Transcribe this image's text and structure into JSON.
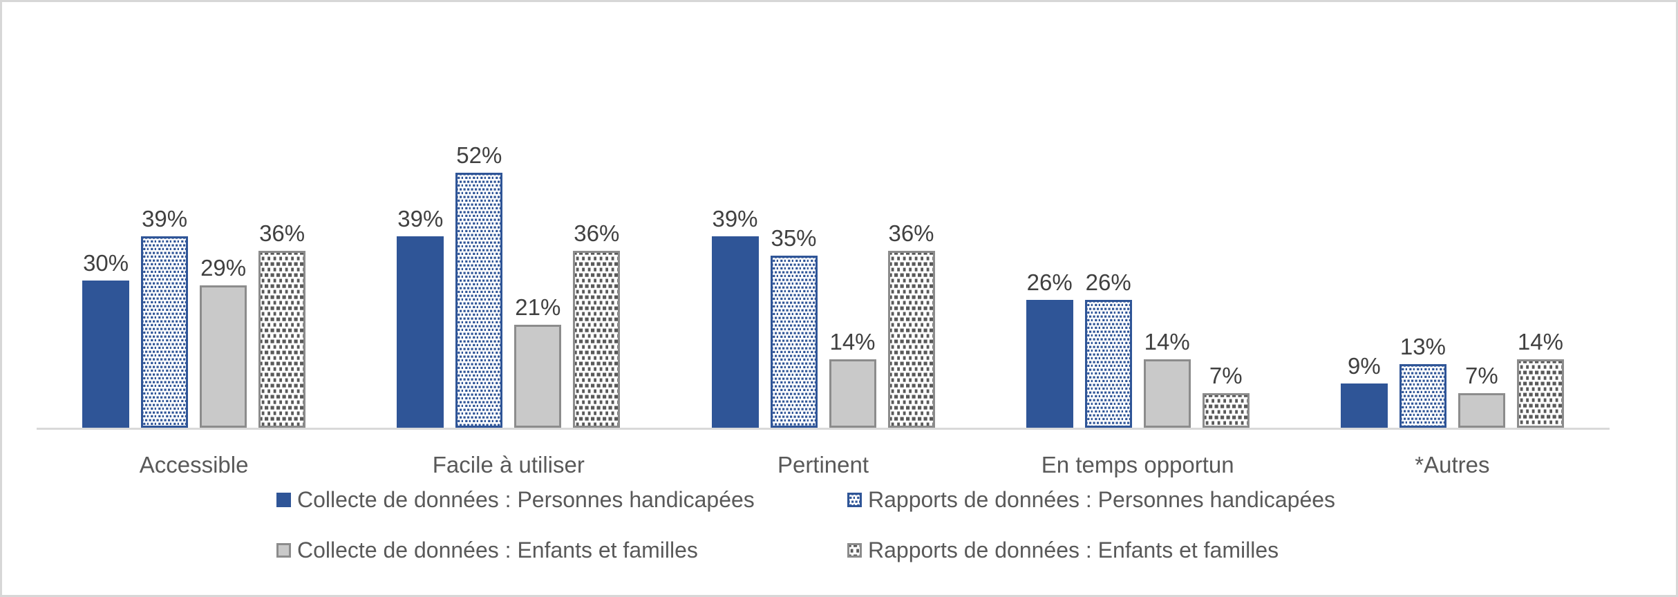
{
  "chart_data": {
    "type": "bar",
    "title": "",
    "xlabel": "",
    "ylabel": "",
    "value_suffix": "%",
    "ylim": [
      0,
      60
    ],
    "grid": false,
    "legend_position": "bottom",
    "categories": [
      "Accessible",
      "Facile à utiliser",
      "Pertinent",
      "En temps opportun",
      "*Autres"
    ],
    "series": [
      {
        "name": "Collecte de données : Personnes handicapées",
        "style": "solid-blue",
        "values": [
          30,
          39,
          39,
          26,
          9
        ]
      },
      {
        "name": "Rapports de données : Personnes handicapées",
        "style": "dotted-blue",
        "values": [
          39,
          52,
          35,
          26,
          13
        ]
      },
      {
        "name": "Collecte de données : Enfants et familles",
        "style": "solid-gray",
        "values": [
          29,
          21,
          14,
          14,
          7
        ]
      },
      {
        "name": "Rapports de données : Enfants et familles",
        "style": "checker-gray",
        "values": [
          36,
          36,
          36,
          7,
          14
        ]
      }
    ],
    "value_labels": [
      [
        "30%",
        "39%",
        "29%",
        "36%"
      ],
      [
        "39%",
        "52%",
        "21%",
        "36%"
      ],
      [
        "39%",
        "35%",
        "14%",
        "36%"
      ],
      [
        "26%",
        "26%",
        "14%",
        "7%"
      ],
      [
        "9%",
        "13%",
        "7%",
        "14%"
      ]
    ]
  },
  "colors": {
    "series_blue": "#2F5597",
    "series_gray_fill": "#C9C9C9",
    "series_gray_border": "#8C8C8C",
    "pattern_dark_square": "#595959",
    "pattern_background": "#FFFFFF",
    "axis_line": "#D9D9D9",
    "value_label": "#404040",
    "category_label": "#595959",
    "legend_text": "#595959",
    "frame_border": "#D7D7D7",
    "background": "#FFFFFF"
  }
}
